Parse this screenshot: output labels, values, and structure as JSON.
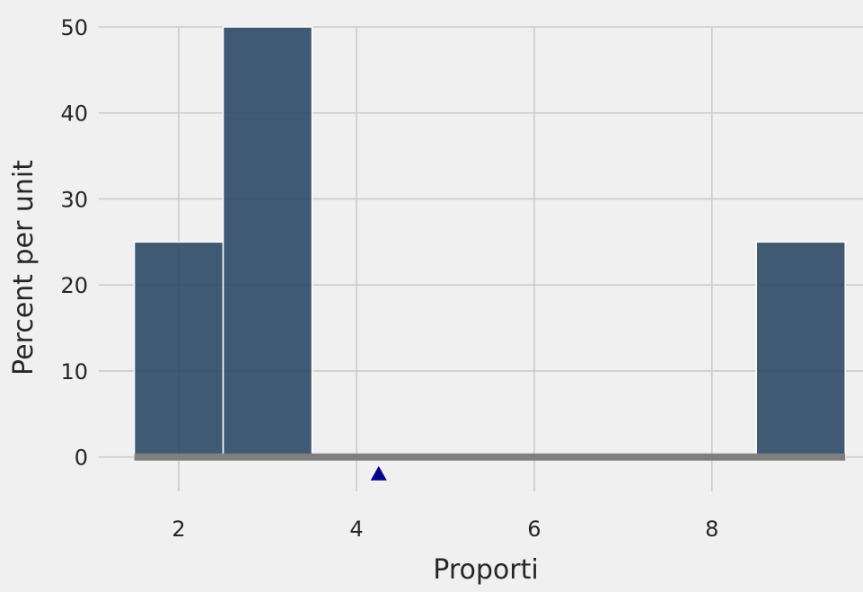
{
  "chart_data": {
    "type": "bar",
    "title": "",
    "xlabel": "Proporti",
    "ylabel": "Percent per unit",
    "xlim": [
      1.1,
      9.7
    ],
    "ylim": [
      -4,
      50
    ],
    "grid": true,
    "bins": [
      {
        "start": 1.5,
        "end": 2.5,
        "value": 25
      },
      {
        "start": 2.5,
        "end": 3.5,
        "value": 50
      },
      {
        "start": 3.5,
        "end": 4.5,
        "value": 0
      },
      {
        "start": 4.5,
        "end": 5.5,
        "value": 0
      },
      {
        "start": 5.5,
        "end": 6.5,
        "value": 0
      },
      {
        "start": 6.5,
        "end": 7.5,
        "value": 0
      },
      {
        "start": 7.5,
        "end": 8.5,
        "value": 0
      },
      {
        "start": 8.5,
        "end": 9.5,
        "value": 25
      }
    ],
    "xticks": [
      2,
      4,
      6,
      8
    ],
    "yticks": [
      0,
      10,
      20,
      30,
      40,
      50
    ],
    "marker": {
      "x": 4.25,
      "shape": "triangle",
      "color": "#00008b"
    },
    "colors": {
      "bar_fill": "#2c4966",
      "bar_edge": "#ffffff",
      "baseline": "#7f7f7f",
      "grid": "#cbcbcb",
      "background": "#f0f0f0"
    }
  }
}
